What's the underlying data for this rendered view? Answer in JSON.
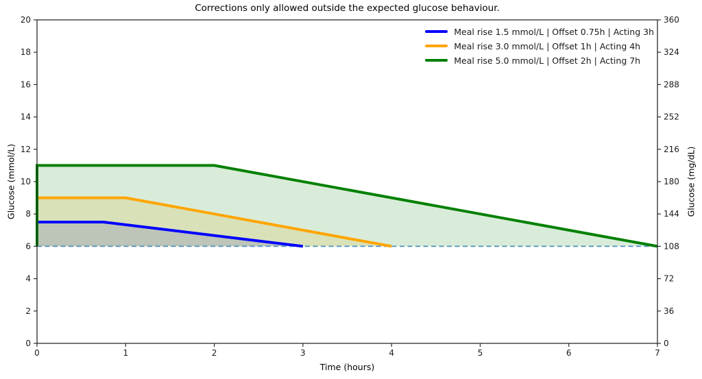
{
  "chart_data": {
    "type": "line",
    "title": "Corrections only allowed outside the expected glucose behaviour.",
    "xlabel": "Time (hours)",
    "ylabel_left": "Glucose (mmol/L)",
    "ylabel_right": "Glucose (mg/dL)",
    "xlim": [
      0,
      7
    ],
    "ylim_left": [
      0,
      20
    ],
    "ylim_right": [
      0,
      360
    ],
    "xticks": [
      0,
      1,
      2,
      3,
      4,
      5,
      6,
      7
    ],
    "yticks_left": [
      0,
      2,
      4,
      6,
      8,
      10,
      12,
      14,
      16,
      18,
      20
    ],
    "yticks_right": [
      0,
      36,
      72,
      108,
      144,
      180,
      216,
      252,
      288,
      324,
      360
    ],
    "grid": false,
    "legend_position": "upper right",
    "baseline": {
      "y": 6,
      "style": "dashed",
      "color": "#4a90c9",
      "x_start": 0,
      "x_end": 7
    },
    "series": [
      {
        "name": "Meal rise 1.5 mmol/L | Offset 0.75h | Acting 3h",
        "color": "#0000ff",
        "points": [
          [
            0,
            6
          ],
          [
            0,
            7.5
          ],
          [
            0.75,
            7.5
          ],
          [
            3,
            6
          ]
        ],
        "fill_to": 6,
        "fill_opacity": 0.15
      },
      {
        "name": "Meal rise 3.0 mmol/L | Offset 1h | Acting 4h",
        "color": "#ffa500",
        "points": [
          [
            0,
            6
          ],
          [
            0,
            9
          ],
          [
            1,
            9
          ],
          [
            4,
            6
          ]
        ],
        "fill_to": 6,
        "fill_opacity": 0.15
      },
      {
        "name": "Meal rise 5.0 mmol/L | Offset 2h | Acting 7h",
        "color": "#008000",
        "points": [
          [
            0,
            6
          ],
          [
            0,
            11
          ],
          [
            2,
            11
          ],
          [
            7,
            6
          ]
        ],
        "fill_to": 6,
        "fill_opacity": 0.15
      }
    ],
    "axis_color": "#2b2b2b",
    "tick_label_color": "#1a1a1a"
  }
}
